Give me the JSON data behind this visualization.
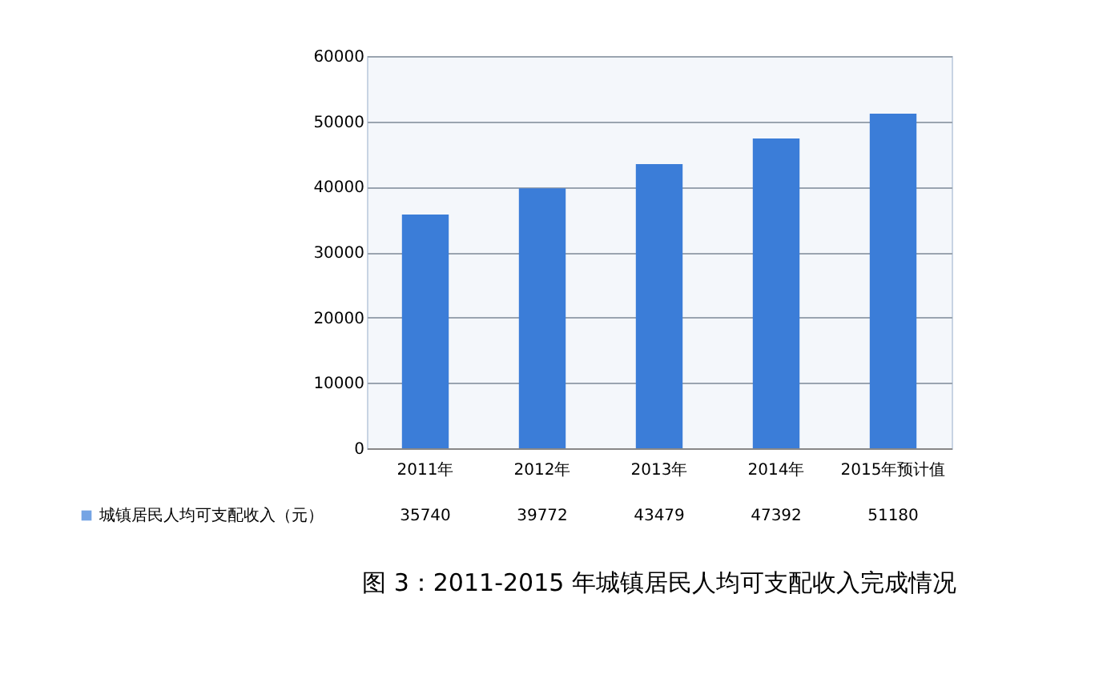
{
  "chart_data": {
    "type": "bar",
    "title": "图 3：2011-2015 年城镇居民人均可支配收入完成情况",
    "categories": [
      "2011年",
      "2012年",
      "2013年",
      "2014年",
      "2015年预计值"
    ],
    "series": [
      {
        "name": "城镇居民人均可支配收入（元）",
        "color": "#3b7dd8",
        "values": [
          35740,
          39772,
          43479,
          47392,
          51180
        ]
      }
    ],
    "ylim": [
      0,
      60000
    ],
    "yticks": [
      0,
      10000,
      20000,
      30000,
      40000,
      50000,
      60000
    ],
    "grid": "y",
    "data_labels": true,
    "legend": "bottom left"
  }
}
